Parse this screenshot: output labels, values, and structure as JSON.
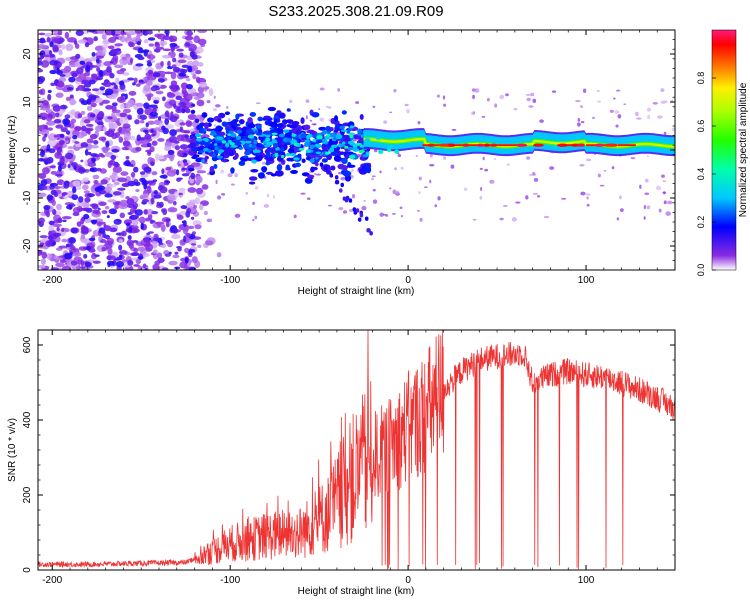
{
  "title": "S233.2025.308.21.09.R09",
  "colors": {
    "background": "#ffffff",
    "axis": "#000000",
    "snr_line": "#ee3333",
    "spectro_scatter": "#7a2be0",
    "ridge": "#ff2020"
  },
  "chart_data": [
    {
      "type": "heatmap",
      "title": "S233.2025.308.21.09.R09",
      "xlabel": "Height of straight line (km)",
      "ylabel": "Frequency (Hz)",
      "xlim": [
        -208,
        150
      ],
      "ylim": [
        -25,
        25
      ],
      "xticks": [
        -200,
        -100,
        0,
        100
      ],
      "xtick_labels": [
        "-200",
        "-100",
        "0",
        "100"
      ],
      "yticks": [
        -20,
        -10,
        0,
        10,
        20
      ],
      "ytick_labels": [
        "-20",
        "-10",
        "0",
        "10",
        "20"
      ],
      "description_regions": [
        {
          "x_range": [
            -208,
            -120
          ],
          "freq_range": [
            -25,
            25
          ],
          "amplitude": [
            0.0,
            0.25
          ],
          "kind": "noise"
        },
        {
          "x_range": [
            -120,
            -25
          ],
          "freq_center": 1.5,
          "freq_spread": 7,
          "amplitude": [
            0.2,
            0.45
          ],
          "kind": "emerging-signal"
        },
        {
          "x_range": [
            -20,
            150
          ],
          "freq_center": 1.0,
          "freq_spread": 1.5,
          "amplitude": [
            0.6,
            1.0
          ],
          "kind": "strong-ridge"
        }
      ],
      "colorbar": {
        "label": "Normalized spectral amplitude",
        "ticks": [
          0.0,
          0.2,
          0.4,
          0.6,
          0.8
        ],
        "tick_labels": [
          "0.0",
          "0.2",
          "0.4",
          "0.6",
          "0.8"
        ],
        "range": [
          0,
          1
        ],
        "colormap": [
          "#ffffff",
          "#6600ff",
          "#0000ff",
          "#00ffff",
          "#00ff00",
          "#ffff00",
          "#ff0000",
          "#ff0080"
        ]
      }
    },
    {
      "type": "line",
      "xlabel": "Height of straight line (km)",
      "ylabel": "SNR (10 * v/v)",
      "xlim": [
        -208,
        150
      ],
      "ylim": [
        0,
        640
      ],
      "xticks": [
        -200,
        -100,
        0,
        100
      ],
      "xtick_labels": [
        "-200",
        "-100",
        "0",
        "100"
      ],
      "yticks": [
        0,
        200,
        400,
        600
      ],
      "ytick_labels": [
        "0",
        "200",
        "400",
        "600"
      ],
      "series": [
        {
          "name": "SNR",
          "x": [
            -208,
            -180,
            -150,
            -125,
            -115,
            -100,
            -80,
            -60,
            -45,
            -30,
            -20,
            -10,
            0,
            10,
            20,
            30,
            40,
            50,
            60,
            65,
            70,
            80,
            90,
            100,
            110,
            120,
            130,
            140,
            150
          ],
          "values": [
            15,
            15,
            18,
            20,
            40,
            70,
            90,
            100,
            150,
            250,
            300,
            330,
            380,
            420,
            480,
            530,
            560,
            570,
            575,
            580,
            500,
            520,
            530,
            520,
            515,
            500,
            480,
            460,
            430
          ]
        }
      ]
    }
  ]
}
